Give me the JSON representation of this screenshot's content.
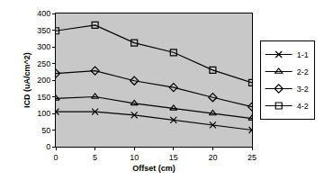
{
  "chart_data": {
    "type": "line",
    "x_label": "Offset (cm)",
    "y_label": "ICD (uA/cm^2)",
    "x": [
      0,
      5,
      10,
      15,
      20,
      25
    ],
    "xlim": [
      0,
      25
    ],
    "xticks": [
      0,
      5,
      10,
      15,
      20,
      25
    ],
    "ylim": [
      0,
      400
    ],
    "yticks": [
      0,
      50,
      100,
      150,
      200,
      250,
      300,
      350,
      400
    ],
    "grid": false,
    "legend": "right",
    "series": [
      {
        "name": "1-1",
        "color": "#000000",
        "marker": "x",
        "values": [
          105,
          105,
          95,
          80,
          65,
          50
        ]
      },
      {
        "name": "2-2",
        "color": "#000000",
        "marker": "triangle",
        "values": [
          145,
          150,
          130,
          115,
          100,
          85
        ]
      },
      {
        "name": "3-2",
        "color": "#000000",
        "marker": "diamond",
        "values": [
          220,
          228,
          198,
          178,
          148,
          120
        ]
      },
      {
        "name": "4-2",
        "color": "#000000",
        "marker": "square",
        "values": [
          348,
          365,
          312,
          283,
          230,
          192
        ]
      }
    ]
  }
}
